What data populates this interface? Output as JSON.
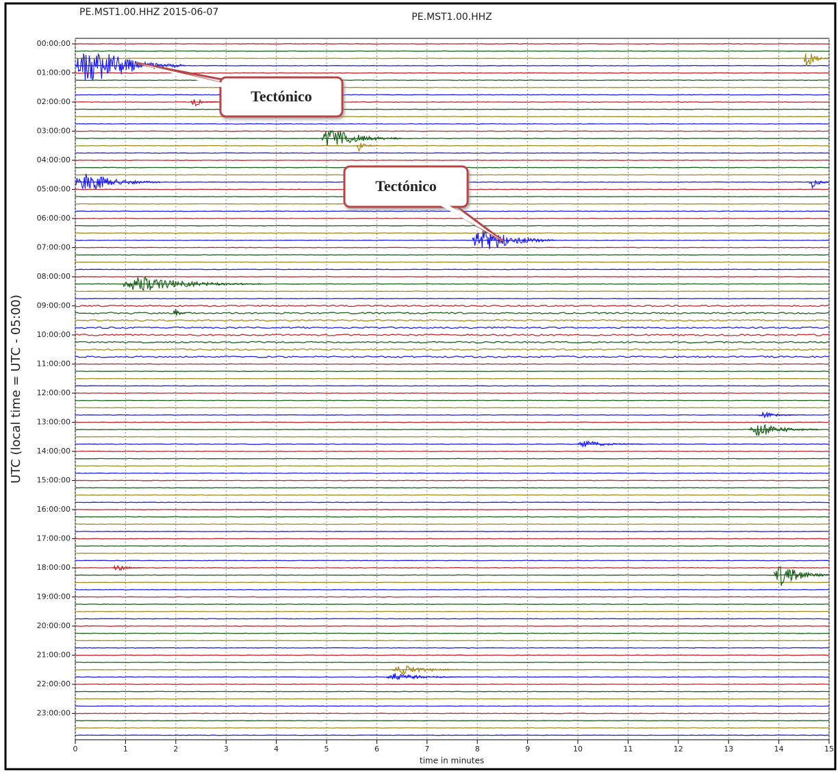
{
  "chart_data": {
    "type": "helicorder",
    "title": "PE.MST1.00.HHZ 2015-06-07",
    "subtitle": "PE.MST1.00.HHZ",
    "y_label": "UTC (local time = UTC - 05:00)",
    "x_label": "time in minutes",
    "colors": [
      "#c0262b",
      "#1a5e1a",
      "#a08a1a",
      "#1d1de6"
    ],
    "xlim": [
      0,
      15
    ],
    "xticks": [
      0,
      1,
      2,
      3,
      4,
      5,
      6,
      7,
      8,
      9,
      10,
      11,
      12,
      13,
      14,
      15
    ],
    "ylim": [
      0,
      24
    ],
    "yticks": [
      {
        "value": 0,
        "label": "00:00:00"
      },
      {
        "value": 1,
        "label": "01:00:00"
      },
      {
        "value": 2,
        "label": "02:00:00"
      },
      {
        "value": 3,
        "label": "03:00:00"
      },
      {
        "value": 4,
        "label": "04:00:00"
      },
      {
        "value": 5,
        "label": "05:00:00"
      },
      {
        "value": 6,
        "label": "06:00:00"
      },
      {
        "value": 7,
        "label": "07:00:00"
      },
      {
        "value": 8,
        "label": "08:00:00"
      },
      {
        "value": 9,
        "label": "09:00:00"
      },
      {
        "value": 10,
        "label": "10:00:00"
      },
      {
        "value": 11,
        "label": "11:00:00"
      },
      {
        "value": 12,
        "label": "12:00:00"
      },
      {
        "value": 13,
        "label": "13:00:00"
      },
      {
        "value": 14,
        "label": "14:00:00"
      },
      {
        "value": 15,
        "label": "15:00:00"
      },
      {
        "value": 16,
        "label": "16:00:00"
      },
      {
        "value": 17,
        "label": "17:00:00"
      },
      {
        "value": 18,
        "label": "18:00:00"
      },
      {
        "value": 19,
        "label": "19:00:00"
      },
      {
        "value": 20,
        "label": "20:00:00"
      },
      {
        "value": 21,
        "label": "21:00:00"
      },
      {
        "value": 22,
        "label": "22:00:00"
      },
      {
        "value": 23,
        "label": "23:00:00"
      }
    ],
    "grid": true,
    "events": [
      {
        "row": 3,
        "start": 0,
        "end": 2.2,
        "amp": 32
      },
      {
        "row": 8,
        "start": 2.3,
        "end": 2.9,
        "amp": 7
      },
      {
        "row": 13,
        "start": 4.9,
        "end": 6.5,
        "amp": 16
      },
      {
        "row": 14,
        "start": 5.6,
        "end": 6.0,
        "amp": 8
      },
      {
        "row": 19,
        "start": 0,
        "end": 1.7,
        "amp": 15
      },
      {
        "row": 19,
        "start": 14.6,
        "end": 15,
        "amp": 10
      },
      {
        "row": 2,
        "start": 14.5,
        "end": 15,
        "amp": 14
      },
      {
        "row": 27,
        "start": 7.9,
        "end": 9.6,
        "amp": 18
      },
      {
        "row": 33,
        "start": 0.95,
        "end": 3.7,
        "amp": 12
      },
      {
        "row": 37,
        "start": 1.95,
        "end": 2.2,
        "amp": 8
      },
      {
        "row": 51,
        "start": 13.6,
        "end": 14.4,
        "amp": 5
      },
      {
        "row": 53,
        "start": 13.4,
        "end": 14.8,
        "amp": 11
      },
      {
        "row": 55,
        "start": 10.0,
        "end": 11.3,
        "amp": 5
      },
      {
        "row": 72,
        "start": 0.75,
        "end": 1.4,
        "amp": 5
      },
      {
        "row": 73,
        "start": 13.9,
        "end": 15,
        "amp": 17
      },
      {
        "row": 86,
        "start": 6.3,
        "end": 7.9,
        "amp": 7
      },
      {
        "row": 87,
        "start": 6.2,
        "end": 7.6,
        "amp": 6
      }
    ],
    "annotations": [
      "Tectónico",
      "Tectónico"
    ]
  }
}
